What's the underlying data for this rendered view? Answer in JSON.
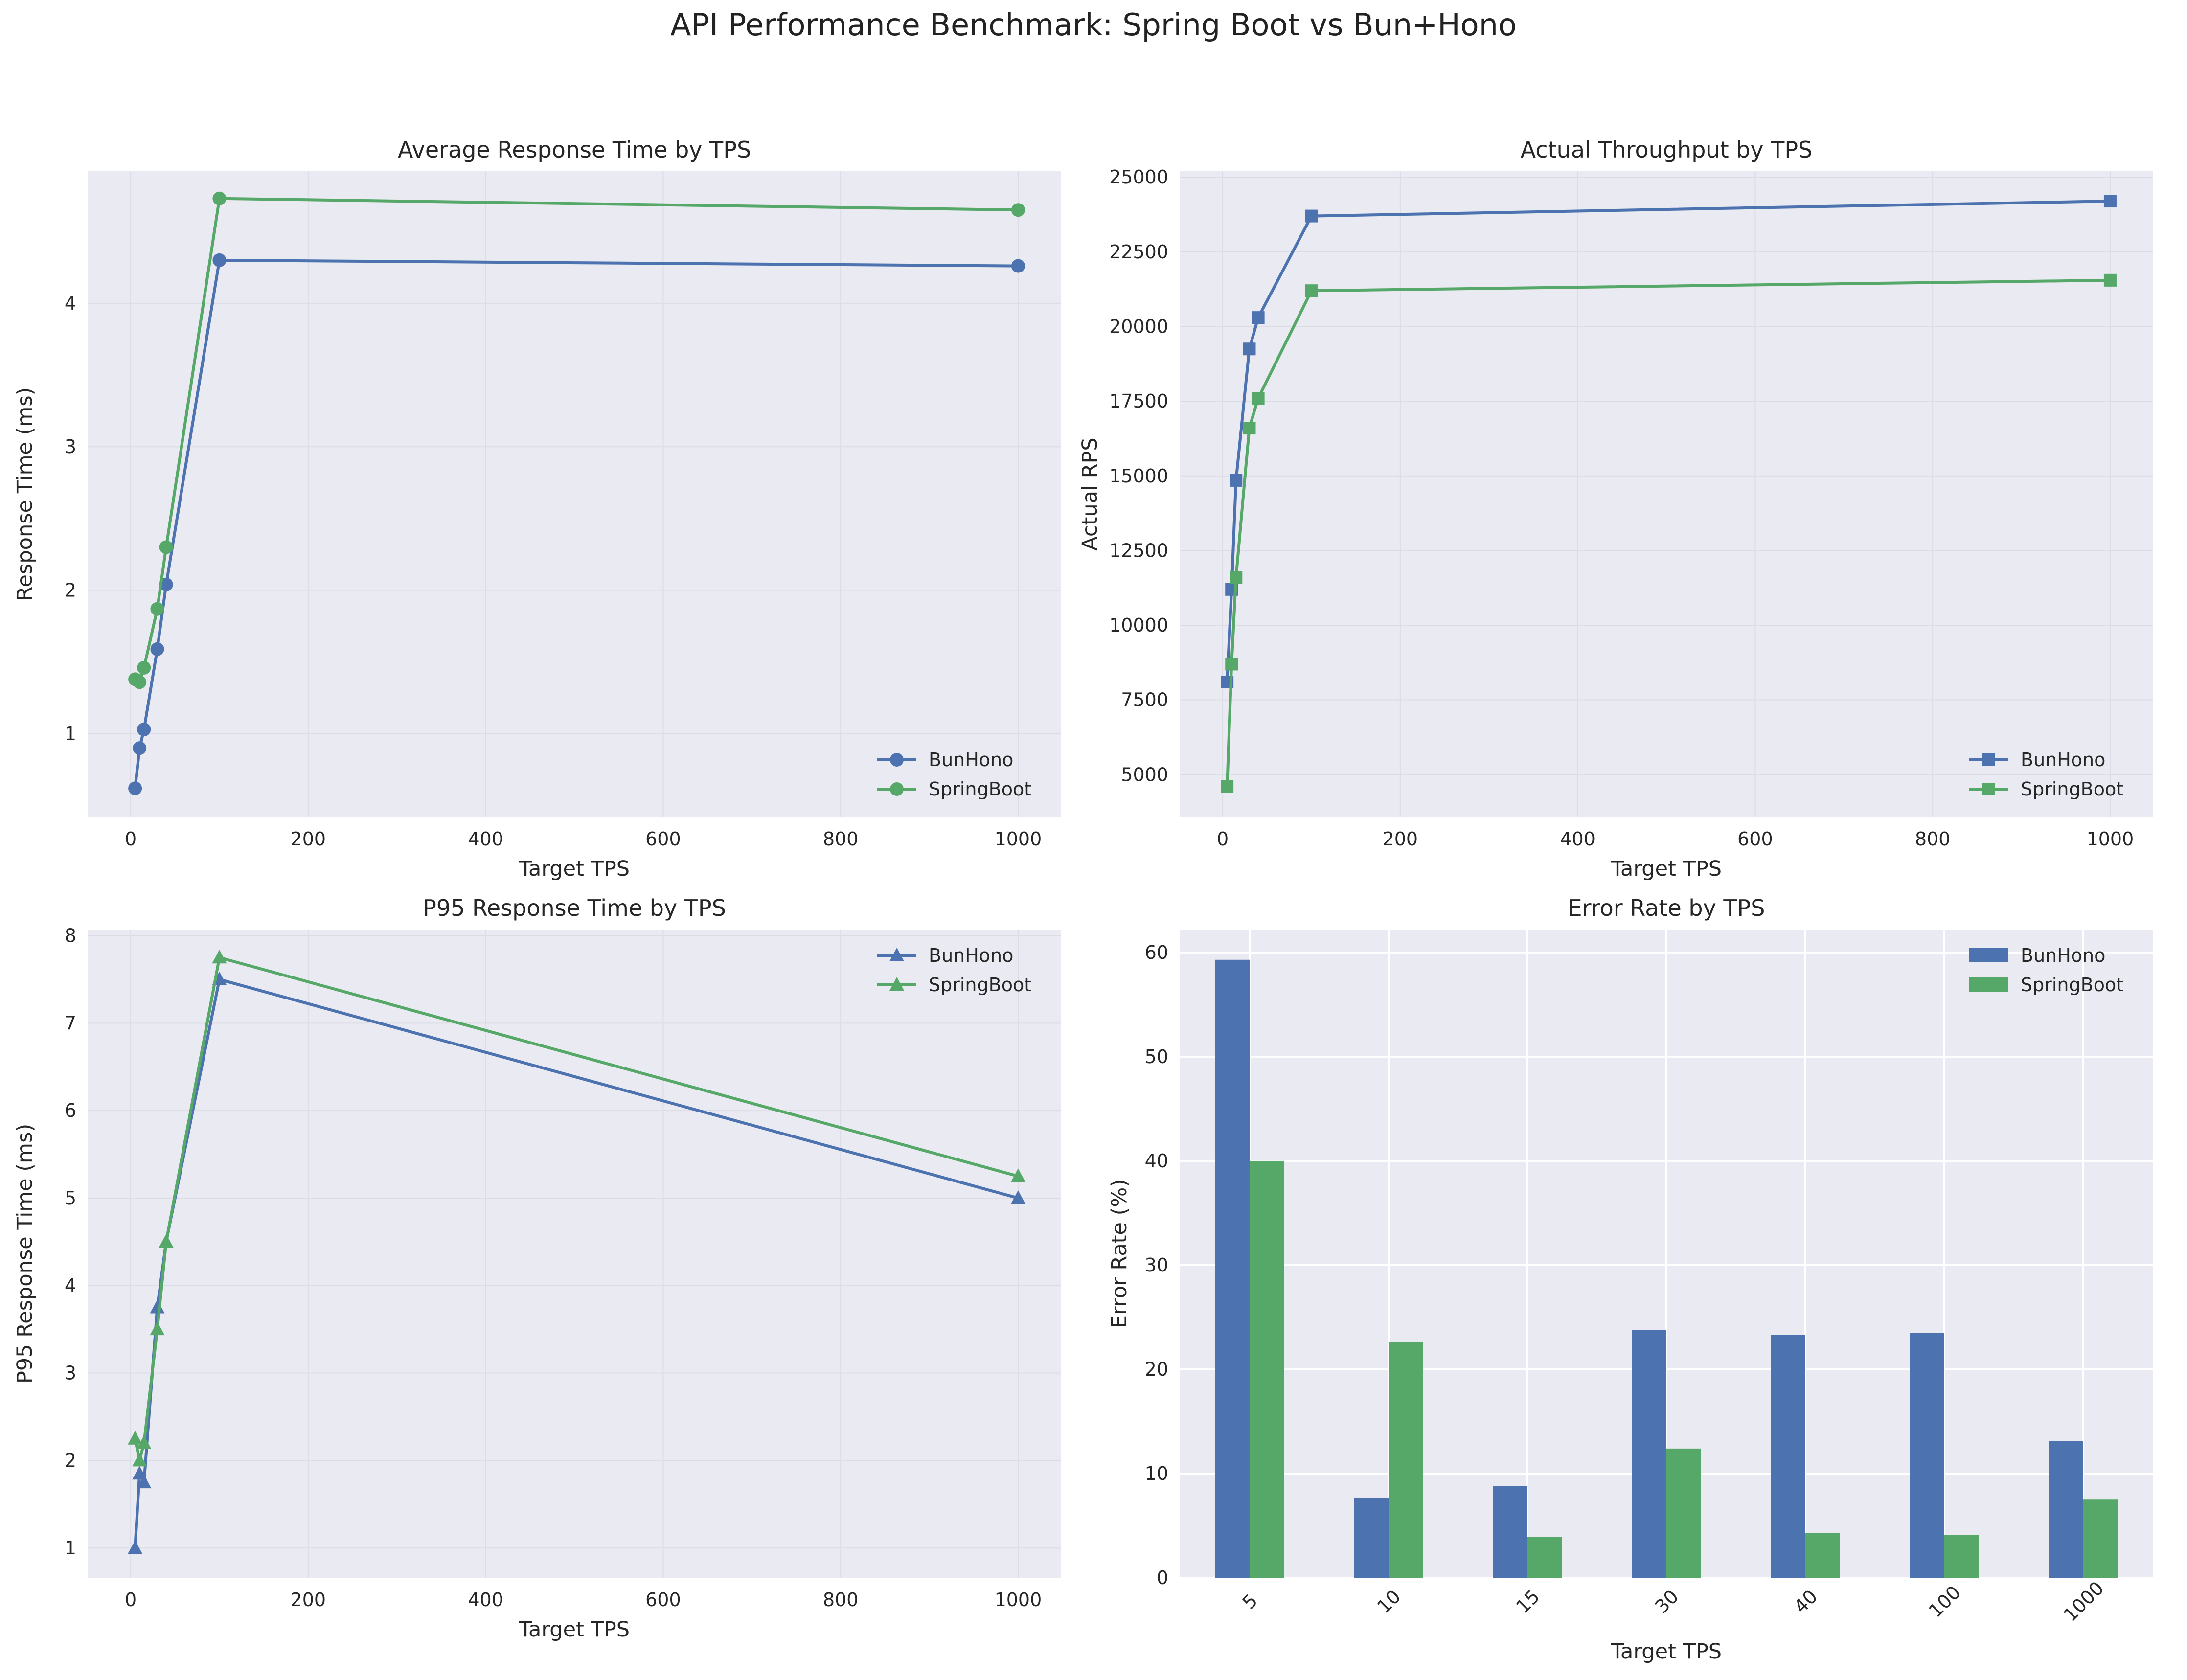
{
  "suptitle": "API Performance Benchmark: Spring Boot vs Bun+Hono",
  "colors": {
    "BunHono": "#4c72b0",
    "SpringBoot": "#55a868",
    "axes_bg": "#eaeaf2",
    "grid": "#ffffff"
  },
  "chart_data": [
    {
      "type": "line",
      "title": "Average Response Time by TPS",
      "xlabel": "Target TPS",
      "ylabel": "Response Time (ms)",
      "marker": "circle",
      "xlim": [
        -48,
        1048
      ],
      "ylim": [
        0.42,
        4.92
      ],
      "xticks": [
        0,
        200,
        400,
        600,
        800,
        1000
      ],
      "yticks": [
        1,
        2,
        3,
        4
      ],
      "grid": true,
      "legend_position": "lower-right",
      "x": [
        5,
        10,
        15,
        30,
        40,
        100,
        1000
      ],
      "series": [
        {
          "name": "BunHono",
          "values": [
            0.62,
            0.9,
            1.03,
            1.59,
            2.04,
            4.3,
            4.26
          ]
        },
        {
          "name": "SpringBoot",
          "values": [
            1.38,
            1.36,
            1.46,
            1.87,
            2.3,
            4.73,
            4.65
          ]
        }
      ]
    },
    {
      "type": "line",
      "title": "Actual Throughput by TPS",
      "xlabel": "Target TPS",
      "ylabel": "Actual RPS",
      "marker": "square",
      "xlim": [
        -48,
        1048
      ],
      "ylim": [
        3580,
        25200
      ],
      "xticks": [
        0,
        200,
        400,
        600,
        800,
        1000
      ],
      "yticks": [
        5000,
        7500,
        10000,
        12500,
        15000,
        17500,
        20000,
        22500,
        25000
      ],
      "grid": true,
      "legend_position": "lower-right",
      "x": [
        5,
        10,
        15,
        30,
        40,
        100,
        1000
      ],
      "series": [
        {
          "name": "BunHono",
          "values": [
            8100,
            11200,
            14850,
            19250,
            20300,
            23700,
            24200
          ]
        },
        {
          "name": "SpringBoot",
          "values": [
            4600,
            8700,
            11600,
            16600,
            17600,
            21200,
            21550
          ]
        }
      ]
    },
    {
      "type": "line",
      "title": "P95 Response Time by TPS",
      "xlabel": "Target TPS",
      "ylabel": "P95 Response Time (ms)",
      "marker": "triangle",
      "xlim": [
        -48,
        1048
      ],
      "ylim": [
        0.66,
        8.07
      ],
      "xticks": [
        0,
        200,
        400,
        600,
        800,
        1000
      ],
      "yticks": [
        1,
        2,
        3,
        4,
        5,
        6,
        7,
        8
      ],
      "grid": true,
      "legend_position": "upper-right",
      "x": [
        5,
        10,
        15,
        30,
        40,
        100,
        1000
      ],
      "series": [
        {
          "name": "BunHono",
          "values": [
            1.0,
            1.85,
            1.75,
            3.75,
            4.5,
            7.5,
            5.0
          ]
        },
        {
          "name": "SpringBoot",
          "values": [
            2.25,
            2.0,
            2.2,
            3.5,
            4.5,
            7.75,
            5.25
          ]
        }
      ]
    },
    {
      "type": "bar",
      "title": "Error Rate by TPS",
      "xlabel": "Target TPS",
      "ylabel": "Error Rate (%)",
      "categories": [
        "5",
        "10",
        "15",
        "30",
        "40",
        "100",
        "1000"
      ],
      "ylim": [
        0,
        62.2
      ],
      "yticks": [
        0,
        10,
        20,
        30,
        40,
        50,
        60
      ],
      "grid": true,
      "legend_position": "upper-right",
      "series": [
        {
          "name": "BunHono",
          "values": [
            59.3,
            7.7,
            8.8,
            23.8,
            23.3,
            23.5,
            13.1
          ]
        },
        {
          "name": "SpringBoot",
          "values": [
            40.0,
            22.6,
            3.9,
            12.4,
            4.3,
            4.1,
            7.5
          ]
        }
      ]
    }
  ]
}
